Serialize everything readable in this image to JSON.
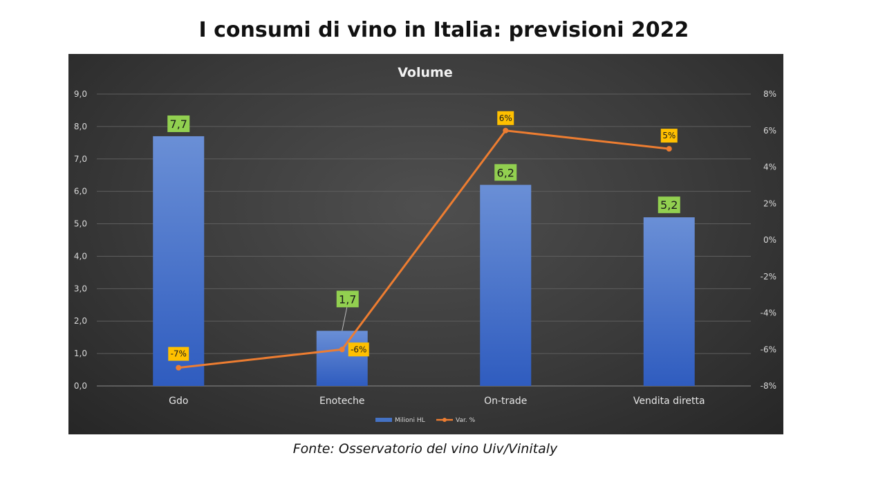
{
  "slide": {
    "title": "I consumi di vino in Italia: previsioni 2022",
    "source": "Fonte: Osservatorio del vino Uiv/Vinitaly"
  },
  "chart_data": {
    "type": "bar",
    "title": "Volume",
    "categories": [
      "Gdo",
      "Enoteche",
      "On-trade",
      "Vendita diretta"
    ],
    "series": [
      {
        "name": "Milioni HL",
        "type": "bar",
        "axis": "left",
        "values": [
          7.7,
          1.7,
          6.2,
          5.2
        ],
        "labels": [
          "7,7",
          "1,7",
          "6,2",
          "5,2"
        ],
        "color": "#4472c4",
        "label_bg": "#92d050"
      },
      {
        "name": "Var. %",
        "type": "line",
        "axis": "right",
        "values": [
          -7,
          -6,
          6,
          5
        ],
        "labels": [
          "-7%",
          "-6%",
          "6%",
          "5%"
        ],
        "color": "#ed7d31",
        "label_bg": "#ffc000"
      }
    ],
    "y_left": {
      "ylim": [
        0,
        9
      ],
      "ticks": [
        "0,0",
        "1,0",
        "2,0",
        "3,0",
        "4,0",
        "5,0",
        "6,0",
        "7,0",
        "8,0",
        "9,0"
      ]
    },
    "y_right": {
      "ylim": [
        -8,
        8
      ],
      "ticks": [
        "-8%",
        "-6%",
        "-4%",
        "-2%",
        "0%",
        "2%",
        "4%",
        "6%",
        "8%"
      ]
    },
    "grid": true,
    "legend_position": "bottom"
  }
}
